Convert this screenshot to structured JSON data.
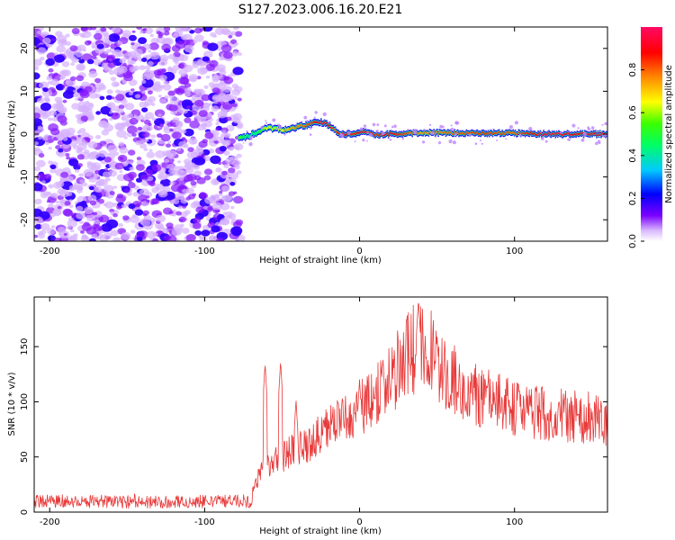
{
  "chart_data": [
    {
      "type": "heatmap",
      "title": "S127.2023.006.16.20.E21",
      "xlabel": "Height of straight line (km)",
      "ylabel": "Frequency (Hz)",
      "xlim": [
        -210,
        160
      ],
      "ylim": [
        -25,
        25
      ],
      "xticks": [
        -200,
        -100,
        0,
        100
      ],
      "xtick_labels": [
        "-200",
        "-100",
        "0",
        "100"
      ],
      "yticks": [
        -20,
        -10,
        0,
        10,
        20
      ],
      "ytick_labels": [
        "-20",
        "-10",
        "0",
        "10",
        "20"
      ],
      "noise_region_x": [
        -210,
        -77
      ],
      "noise_amplitude_typical": 0.15,
      "signal_line": {
        "x": [
          -78,
          -72,
          -66,
          -60,
          -54,
          -48,
          -42,
          -36,
          -30,
          -25,
          -20,
          -16,
          -12,
          -8,
          -4,
          0,
          5,
          10,
          20,
          40,
          60,
          80,
          100,
          120,
          140,
          160
        ],
        "freq": [
          -1.0,
          -0.5,
          0.5,
          1.5,
          1.2,
          1.0,
          1.5,
          2.0,
          2.5,
          2.8,
          2.2,
          1.0,
          0.0,
          0.0,
          0.0,
          0.5,
          0.5,
          -0.2,
          0.0,
          0.3,
          0.3,
          0.2,
          0.2,
          0.0,
          0.0,
          0.0
        ],
        "amplitude": [
          0.55,
          0.4,
          0.45,
          0.65,
          0.6,
          0.7,
          0.75,
          0.8,
          0.85,
          0.95,
          0.9,
          0.8,
          0.95,
          0.9,
          0.85,
          0.9,
          0.95,
          0.85,
          0.9,
          0.75,
          0.8,
          0.85,
          0.8,
          0.95,
          0.9,
          0.95
        ]
      },
      "colorbar": {
        "label": "Normalized spectral amplitude",
        "range": [
          0,
          1
        ],
        "ticks": [
          0.0,
          0.2,
          0.4,
          0.6,
          0.8
        ],
        "tick_labels": [
          "0.0",
          "0.2",
          "0.4",
          "0.6",
          "0.8"
        ]
      }
    },
    {
      "type": "line",
      "title": "",
      "xlabel": "Height of straight line (km)",
      "ylabel": "SNR (10 * v/v)",
      "xlim": [
        -210,
        160
      ],
      "ylim": [
        0,
        195
      ],
      "xticks": [
        -200,
        -100,
        0,
        100
      ],
      "xtick_labels": [
        "-200",
        "-100",
        "0",
        "100"
      ],
      "yticks": [
        0,
        50,
        100,
        150
      ],
      "ytick_labels": [
        "0",
        "50",
        "100",
        "150"
      ],
      "series": [
        {
          "name": "SNR",
          "color": "#e83a3a",
          "x": [
            -210,
            -180,
            -150,
            -120,
            -90,
            -70,
            -65,
            -55,
            -45,
            -35,
            -25,
            -15,
            -5,
            5,
            15,
            25,
            35,
            40,
            45,
            55,
            70,
            90,
            110,
            130,
            150,
            160
          ],
          "values": [
            10,
            10,
            9,
            9,
            10,
            10,
            35,
            45,
            55,
            60,
            70,
            80,
            88,
            98,
            115,
            130,
            148,
            155,
            145,
            125,
            108,
            98,
            90,
            88,
            85,
            80
          ],
          "spikes": [
            {
              "x": -61,
              "value": 135
            },
            {
              "x": -51,
              "value": 137
            },
            {
              "x": -41,
              "value": 102
            },
            {
              "x": 0,
              "value": 120
            },
            {
              "x": 15,
              "value": 139
            },
            {
              "x": 38,
              "value": 193
            },
            {
              "x": 50,
              "value": 160
            }
          ]
        }
      ]
    }
  ]
}
